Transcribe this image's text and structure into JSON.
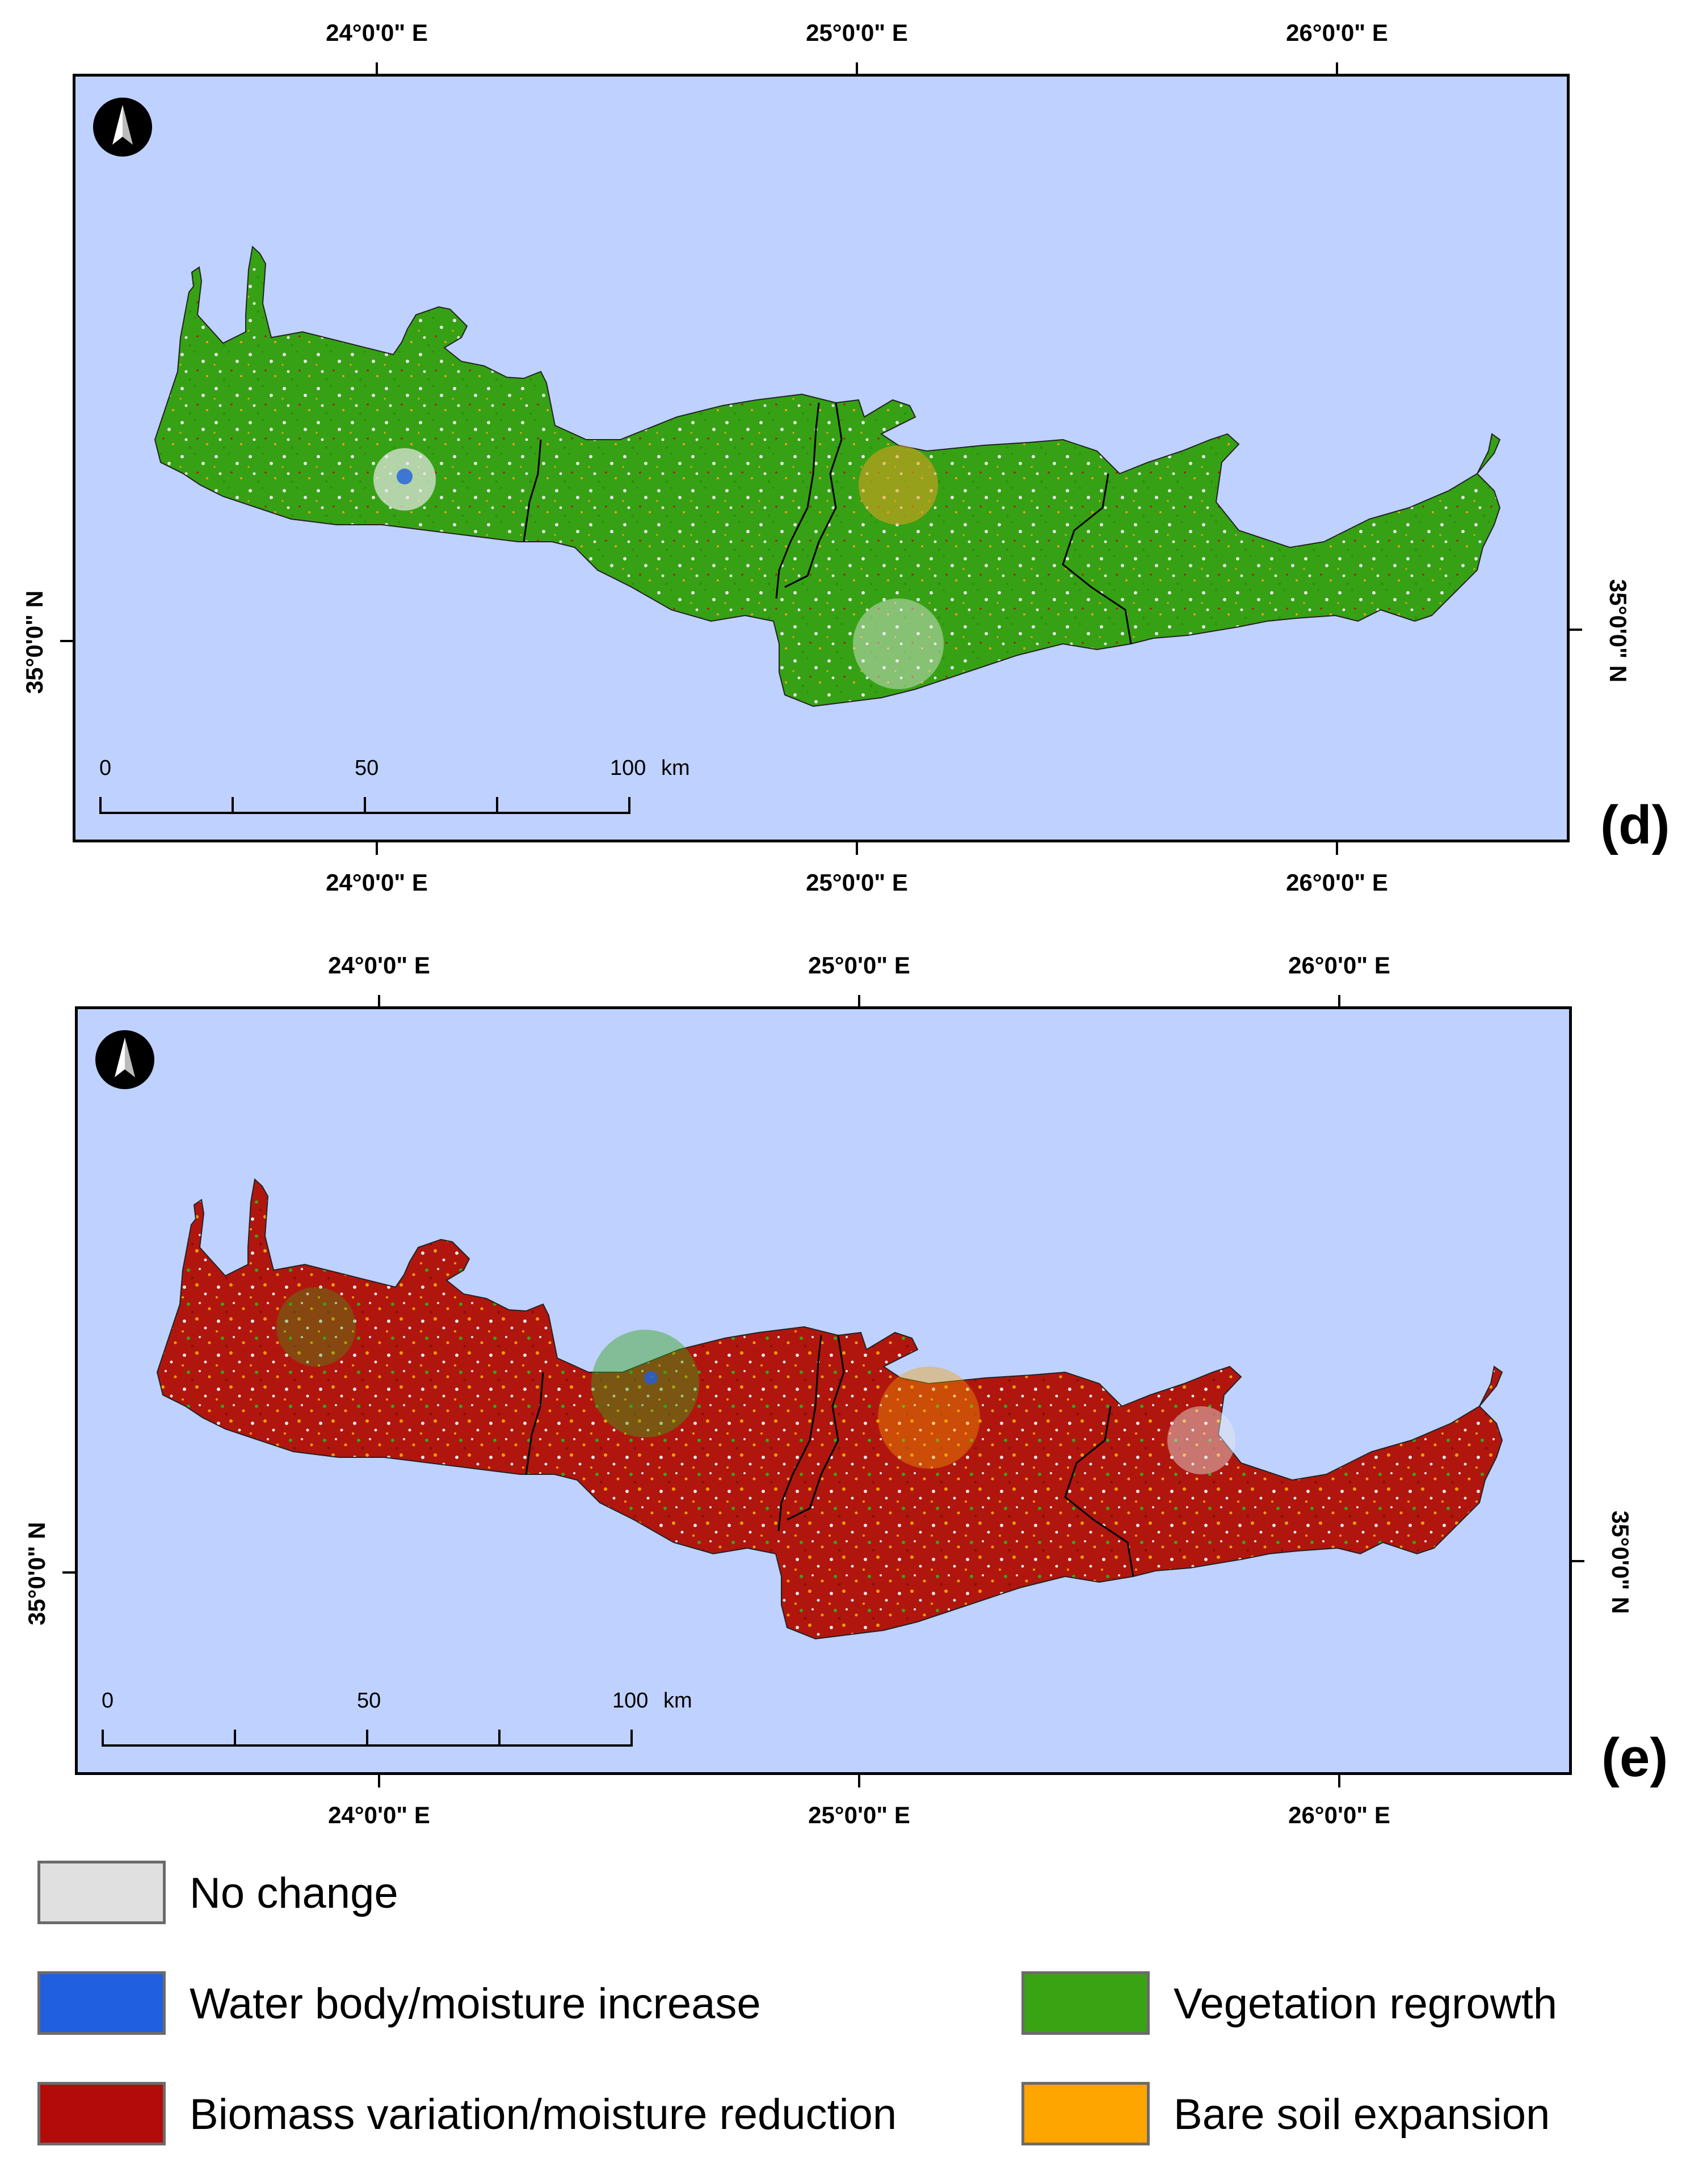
{
  "map_common": {
    "top_lon_labels": [
      "24°0'0\" E",
      "25°0'0\" E",
      "26°0'0\" E"
    ],
    "bottom_lon_labels": [
      "24°0'0\" E",
      "25°0'0\" E",
      "26°0'0\" E"
    ],
    "left_lat_label": "35°0'0\" N",
    "right_lat_label": "35°0'0\" N",
    "scale_bar": {
      "labels": [
        "0",
        "50",
        "100"
      ],
      "unit": "km"
    },
    "north_arrow_icon": "north-arrow-icon",
    "sea_color": "#bfd1ff",
    "district_border_color": "#000000"
  },
  "panels": [
    {
      "id": "d",
      "label": "(d)",
      "dominant_class": "Vegetation regrowth",
      "colors": {
        "base": "#36a114",
        "secondary": "#e8e8e8",
        "tertiary": "#f0a020",
        "quaternary": "#b01a14"
      }
    },
    {
      "id": "e",
      "label": "(e)",
      "dominant_class": "Biomass variation/moisture reduction",
      "colors": {
        "base": "#b0160e",
        "secondary": "#e8e8e8",
        "tertiary": "#f5a000",
        "quaternary": "#3aa318"
      }
    }
  ],
  "legend": {
    "items": [
      {
        "label": "No change",
        "color": "#e0e0e0"
      },
      {
        "label": "Water body/moisture increase",
        "color": "#1f5fe0"
      },
      {
        "label": "Vegetation regrowth",
        "color": "#39a313"
      },
      {
        "label": "Biomass variation/moisture reduction",
        "color": "#b30a0a"
      },
      {
        "label": "Bare soil expansion",
        "color": "#ffa500"
      }
    ]
  }
}
